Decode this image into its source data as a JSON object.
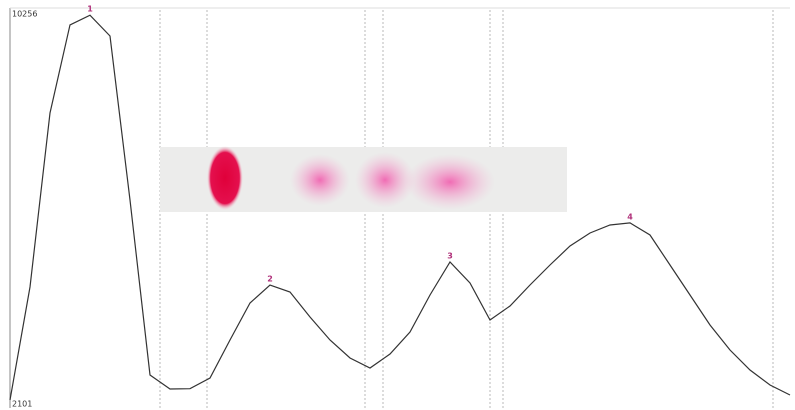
{
  "chart_data": {
    "type": "line",
    "values": [
      2205,
      4562,
      8192,
      10028,
      10230,
      9798,
      6377,
      2727,
      2435,
      2440,
      2664,
      3457,
      4229,
      4604,
      4458,
      3937,
      3457,
      3082,
      2873,
      3165,
      3624,
      4396,
      5084,
      4646,
      3874,
      4166,
      4604,
      5021,
      5418,
      5689,
      5856,
      5898,
      5647,
      5021,
      4396,
      3770,
      3249,
      2832,
      2518,
      2310
    ],
    "color": "#333333",
    "ylim": [
      2101,
      10256
    ],
    "yticks": [
      2101,
      10256
    ],
    "annotations": [
      "1",
      "2",
      "3",
      "4"
    ],
    "annotation_color": "#b0307a"
  }
}
